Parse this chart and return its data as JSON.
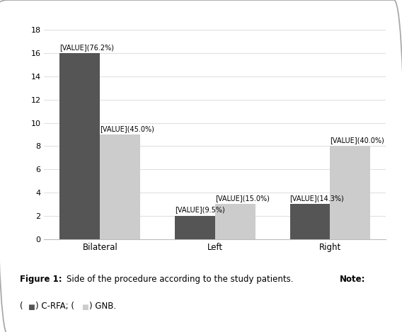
{
  "categories": [
    "Bilateral",
    "Left",
    "Right"
  ],
  "crfa_values": [
    16,
    2,
    3
  ],
  "gnb_values": [
    9,
    3,
    8
  ],
  "crfa_labels": [
    "[VALUE](76.2%)",
    "[VALUE](9.5%)",
    "[VALUE](14.3%)"
  ],
  "gnb_labels": [
    "[VALUE](45.0%)",
    "[VALUE](15.0%)",
    "[VALUE](40.0%)"
  ],
  "crfa_color": "#555555",
  "gnb_color": "#cccccc",
  "bar_width": 0.35,
  "ylim": [
    0,
    18
  ],
  "yticks": [
    0,
    2,
    4,
    6,
    8,
    10,
    12,
    14,
    16,
    18
  ],
  "background_color": "#ffffff",
  "chart_bg": "#ffffff",
  "border_color": "#aaaaaa",
  "label_fontsize": 7.0,
  "tick_fontsize": 8,
  "xlabel_fontsize": 8.5,
  "caption_fontsize": 8.5
}
